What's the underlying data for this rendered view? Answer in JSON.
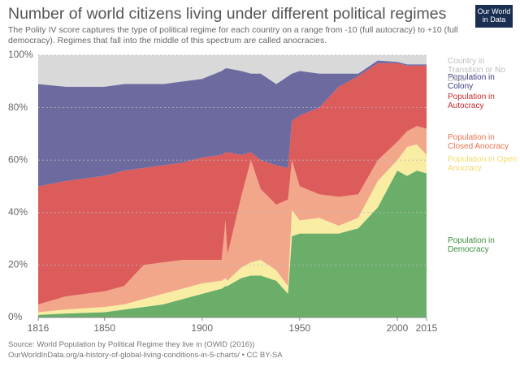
{
  "chart_data": {
    "type": "stacked-area",
    "title": "Number of world citizens living under different political regimes",
    "subtitle": "The Polity IV score captures the type of political regime for each country on a range from -10 (full autocracy) to +10 (full democracy). Regimes that fall into the middle of this spectrum are called anocracies.",
    "logo": "Our World in Data",
    "source": "Source: World Population by Political Regime they live in (OWID (2016))",
    "source_url": "OurWorldInData.org/a-history-of-global-living-conditions-in-5-charts/ • CC BY-SA",
    "x": [
      1816,
      1830,
      1850,
      1860,
      1870,
      1880,
      1890,
      1900,
      1910,
      1912,
      1913,
      1920,
      1925,
      1930,
      1938,
      1944,
      1946,
      1950,
      1960,
      1970,
      1980,
      1990,
      2000,
      2005,
      2010,
      2015
    ],
    "series": [
      {
        "name": "Population in Democracy",
        "color": "#6aae6a",
        "label_color": "#3f8f3f",
        "values": [
          1,
          1.5,
          2,
          3,
          4,
          5,
          7,
          9,
          11,
          12,
          12,
          15,
          16,
          16,
          14,
          9,
          31,
          32,
          32,
          32,
          34,
          42,
          56,
          54,
          56,
          55
        ]
      },
      {
        "name": "Population in Open Anocracy",
        "color": "#f8eda2",
        "label_color": "#f3d96a",
        "values": [
          1,
          1.5,
          2,
          2,
          3,
          4,
          4,
          4,
          3,
          3,
          2,
          4,
          5,
          6,
          4,
          3,
          10,
          5,
          6,
          3,
          4,
          10,
          4,
          11,
          10,
          7
        ]
      },
      {
        "name": "Population in Closed Anocracy",
        "color": "#f2a68a",
        "label_color": "#e8734f",
        "values": [
          3,
          5,
          6,
          7,
          13,
          12,
          11,
          9,
          8,
          22,
          10,
          27,
          39,
          27,
          25,
          33,
          19,
          13,
          9,
          11,
          9,
          8,
          7,
          6,
          7,
          10
        ]
      },
      {
        "name": "Population in Autocracy",
        "color": "#dc5b5b",
        "label_color": "#c42b2b",
        "values": [
          45,
          44,
          44,
          44,
          37,
          37,
          37,
          39,
          40,
          26,
          39,
          16,
          3,
          11,
          15,
          12,
          15,
          27,
          33,
          42,
          45,
          37,
          30,
          25,
          23,
          24
        ]
      },
      {
        "name": "Population in Colony",
        "color": "#6d6aa0",
        "label_color": "#3b3a86",
        "values": [
          39,
          36,
          34,
          33,
          32,
          31,
          31,
          30,
          32,
          32,
          32,
          32,
          30,
          33,
          31,
          35,
          18,
          17,
          13,
          5,
          1,
          1,
          0.5,
          0.5,
          0.5,
          0.5
        ]
      },
      {
        "name": "Country in Transition or No Data",
        "color": "#d9d9d9",
        "label_color": "#bdbdbd",
        "values": [
          11,
          12,
          12,
          11,
          11,
          11,
          10,
          9,
          6,
          5,
          5,
          6,
          7,
          7,
          11,
          8,
          7,
          6,
          7,
          7,
          7,
          2,
          2.5,
          3.5,
          3.5,
          3.5
        ]
      }
    ],
    "xlim": [
      1816,
      2015
    ],
    "xticks": [
      1816,
      1850,
      1900,
      1950,
      2000,
      2015
    ],
    "ylim": [
      0,
      100
    ],
    "yticks": [
      {
        "value": 0,
        "label": "0%"
      },
      {
        "value": 20,
        "label": "20%"
      },
      {
        "value": 40,
        "label": "40%"
      },
      {
        "value": 60,
        "label": "60%"
      },
      {
        "value": 80,
        "label": "80%"
      },
      {
        "value": 100,
        "label": "100%"
      }
    ],
    "grid": true
  }
}
